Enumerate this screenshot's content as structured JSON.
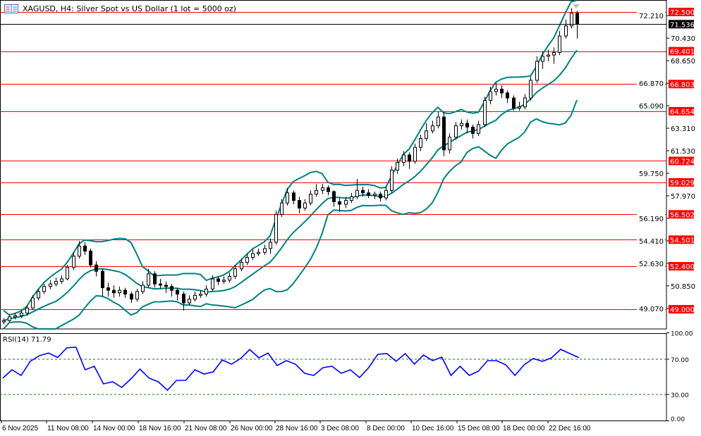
{
  "header": {
    "title": "XAGUSD, H4:  Silver Spot vs US Dollar (1 lot = 5000 oz)",
    "icon": "chart-window-icon"
  },
  "rsi_panel": {
    "label": "RSI(14) 71.79",
    "axis_labels": [
      "100.00",
      "70.00",
      "30.00",
      "0.00"
    ],
    "levels": [
      70,
      30
    ]
  },
  "colors": {
    "level_line": "#ff0000",
    "bands": "#008080",
    "rsi_line": "#0000ff",
    "rsi_levels": "#008000",
    "current_price_bg": "#000000",
    "level_label_bg": "#ff0000"
  },
  "chart_data": {
    "type": "candlestick",
    "symbol": "XAGUSD",
    "timeframe": "H4",
    "current_price": "71.536",
    "price_axis_ticks": [
      "72.210",
      "70.430",
      "68.650",
      "66.870",
      "65.090",
      "63.310",
      "61.530",
      "59.750",
      "57.970",
      "56.190",
      "54.410",
      "52.630",
      "50.850",
      "49.070"
    ],
    "level_lines": [
      "72.500",
      "69.401",
      "66.803",
      "64.654",
      "60.724",
      "59.029",
      "56.502",
      "54.501",
      "52.400",
      "49.000"
    ],
    "x_labels": [
      "6 Nov 2025",
      "11 Nov 08:00",
      "14 Nov 00:00",
      "18 Nov 16:00",
      "21 Nov 08:00",
      "26 Nov 00:00",
      "28 Nov 16:00",
      "3 Dec 08:00",
      "8 Dec 00:00",
      "10 Dec 16:00",
      "15 Dec 08:00",
      "18 Dec 00:00",
      "22 Dec 16:00"
    ],
    "ylim": [
      47.2,
      73.4
    ],
    "candles": [
      [
        48.0,
        48.3,
        47.8,
        48.1
      ],
      [
        48.1,
        48.6,
        48.0,
        48.4
      ],
      [
        48.4,
        48.7,
        48.2,
        48.5
      ],
      [
        48.5,
        48.9,
        48.3,
        48.7
      ],
      [
        48.7,
        49.3,
        48.5,
        49.1
      ],
      [
        49.1,
        50.1,
        49.0,
        49.9
      ],
      [
        49.9,
        50.6,
        49.7,
        50.4
      ],
      [
        50.4,
        51.0,
        50.2,
        50.8
      ],
      [
        50.8,
        51.3,
        50.6,
        51.0
      ],
      [
        51.0,
        51.5,
        50.8,
        51.2
      ],
      [
        51.2,
        51.7,
        51.0,
        51.4
      ],
      [
        51.4,
        52.5,
        51.3,
        52.3
      ],
      [
        52.3,
        53.5,
        52.1,
        53.2
      ],
      [
        53.2,
        54.4,
        53.0,
        54.0
      ],
      [
        54.0,
        54.3,
        53.3,
        53.6
      ],
      [
        53.6,
        53.8,
        52.3,
        52.5
      ],
      [
        52.5,
        52.8,
        51.6,
        52.0
      ],
      [
        52.0,
        52.2,
        50.0,
        50.7
      ],
      [
        50.7,
        51.1,
        50.0,
        50.5
      ],
      [
        50.5,
        50.9,
        49.9,
        50.3
      ],
      [
        50.3,
        50.8,
        50.0,
        50.5
      ],
      [
        50.5,
        50.7,
        49.9,
        50.2
      ],
      [
        50.2,
        50.4,
        49.5,
        49.8
      ],
      [
        49.8,
        50.6,
        49.6,
        50.4
      ],
      [
        50.4,
        51.2,
        50.2,
        50.9
      ],
      [
        50.9,
        52.2,
        50.7,
        51.8
      ],
      [
        51.8,
        52.0,
        50.7,
        51.0
      ],
      [
        51.0,
        51.4,
        50.6,
        50.9
      ],
      [
        50.9,
        51.2,
        50.3,
        50.8
      ],
      [
        50.8,
        51.0,
        50.0,
        50.5
      ],
      [
        50.5,
        50.7,
        49.7,
        50.2
      ],
      [
        50.2,
        50.4,
        48.9,
        49.5
      ],
      [
        49.5,
        50.1,
        49.3,
        49.8
      ],
      [
        49.8,
        50.4,
        49.6,
        50.1
      ],
      [
        50.1,
        50.5,
        49.9,
        50.2
      ],
      [
        50.2,
        50.9,
        50.0,
        50.6
      ],
      [
        50.6,
        51.7,
        50.4,
        51.4
      ],
      [
        51.4,
        51.6,
        50.9,
        51.2
      ],
      [
        51.2,
        51.6,
        51.0,
        51.3
      ],
      [
        51.3,
        51.9,
        51.1,
        51.6
      ],
      [
        51.6,
        52.5,
        51.4,
        52.2
      ],
      [
        52.2,
        53.0,
        52.0,
        52.7
      ],
      [
        52.7,
        53.4,
        52.5,
        53.1
      ],
      [
        53.1,
        53.7,
        52.9,
        53.4
      ],
      [
        53.4,
        53.8,
        53.2,
        53.5
      ],
      [
        53.5,
        54.1,
        53.3,
        53.8
      ],
      [
        53.8,
        54.6,
        53.4,
        54.3
      ],
      [
        54.3,
        56.8,
        54.1,
        56.5
      ],
      [
        56.5,
        57.7,
        56.3,
        57.4
      ],
      [
        57.4,
        58.6,
        57.2,
        58.2
      ],
      [
        58.2,
        58.4,
        57.3,
        57.6
      ],
      [
        57.6,
        57.9,
        56.6,
        57.0
      ],
      [
        57.0,
        57.7,
        56.8,
        57.4
      ],
      [
        57.4,
        58.4,
        57.2,
        58.1
      ],
      [
        58.1,
        58.9,
        57.9,
        58.4
      ],
      [
        58.4,
        58.9,
        58.1,
        58.6
      ],
      [
        58.6,
        58.8,
        58.0,
        58.3
      ],
      [
        58.3,
        58.4,
        57.1,
        57.5
      ],
      [
        57.5,
        57.8,
        56.7,
        57.3
      ],
      [
        57.3,
        57.9,
        57.0,
        57.6
      ],
      [
        57.6,
        58.2,
        57.4,
        57.9
      ],
      [
        57.9,
        59.3,
        57.7,
        58.4
      ],
      [
        58.4,
        58.7,
        57.9,
        58.2
      ],
      [
        58.2,
        58.5,
        57.8,
        58.0
      ],
      [
        58.0,
        58.3,
        57.7,
        58.1
      ],
      [
        58.1,
        58.3,
        57.5,
        57.8
      ],
      [
        57.8,
        58.7,
        57.6,
        58.4
      ],
      [
        58.4,
        60.3,
        58.2,
        60.0
      ],
      [
        60.0,
        60.9,
        59.7,
        60.6
      ],
      [
        60.6,
        61.5,
        60.3,
        61.2
      ],
      [
        61.2,
        61.4,
        60.1,
        60.7
      ],
      [
        60.7,
        62.1,
        60.5,
        61.8
      ],
      [
        61.8,
        62.8,
        61.5,
        62.5
      ],
      [
        62.5,
        63.7,
        62.3,
        63.1
      ],
      [
        63.1,
        63.9,
        62.9,
        63.5
      ],
      [
        63.5,
        64.6,
        63.3,
        64.2
      ],
      [
        64.2,
        64.6,
        61.1,
        61.6
      ],
      [
        61.6,
        62.9,
        61.3,
        62.6
      ],
      [
        62.6,
        63.8,
        62.4,
        63.5
      ],
      [
        63.5,
        64.0,
        63.2,
        63.7
      ],
      [
        63.7,
        64.0,
        62.9,
        63.4
      ],
      [
        63.4,
        63.6,
        62.5,
        62.9
      ],
      [
        62.9,
        63.9,
        62.7,
        63.6
      ],
      [
        63.6,
        65.8,
        63.4,
        65.5
      ],
      [
        65.5,
        66.6,
        65.2,
        66.2
      ],
      [
        66.2,
        66.9,
        65.9,
        66.4
      ],
      [
        66.4,
        66.7,
        65.7,
        66.1
      ],
      [
        66.1,
        66.3,
        65.3,
        65.7
      ],
      [
        65.7,
        65.9,
        64.7,
        64.9
      ],
      [
        64.9,
        65.4,
        64.7,
        65.0
      ],
      [
        65.0,
        66.0,
        64.8,
        65.7
      ],
      [
        65.7,
        67.4,
        65.5,
        67.1
      ],
      [
        67.1,
        69.0,
        66.9,
        68.6
      ],
      [
        68.6,
        69.4,
        68.0,
        69.0
      ],
      [
        69.0,
        69.5,
        68.6,
        69.1
      ],
      [
        69.1,
        69.7,
        68.4,
        69.3
      ],
      [
        69.3,
        71.0,
        69.1,
        70.6
      ],
      [
        70.6,
        71.9,
        70.4,
        71.4
      ],
      [
        71.4,
        72.8,
        71.2,
        72.4
      ],
      [
        72.4,
        72.6,
        70.4,
        71.54
      ]
    ],
    "rsi": [
      48.6,
      58,
      51.6,
      67.6,
      74,
      77,
      72,
      83,
      83.6,
      58,
      62,
      42,
      44.4,
      38,
      47.6,
      58.8,
      48.4,
      44.4,
      34.8,
      46,
      46,
      58,
      53.2,
      55.6,
      69.2,
      64.4,
      70.8,
      81,
      71.6,
      77,
      62.8,
      68.4,
      64.4,
      54,
      51.6,
      60.4,
      62,
      54,
      58,
      49.2,
      60.4,
      75.6,
      76.4,
      67.6,
      76.4,
      64.4,
      74.8,
      68.4,
      72.4,
      51.6,
      62,
      51.6,
      56.4,
      68.4,
      68.4,
      63.6,
      51.6,
      63.6,
      70.8,
      67.6,
      71.6,
      81.2,
      76.4,
      71.79
    ],
    "rsi_ylim": [
      0,
      100
    ]
  }
}
